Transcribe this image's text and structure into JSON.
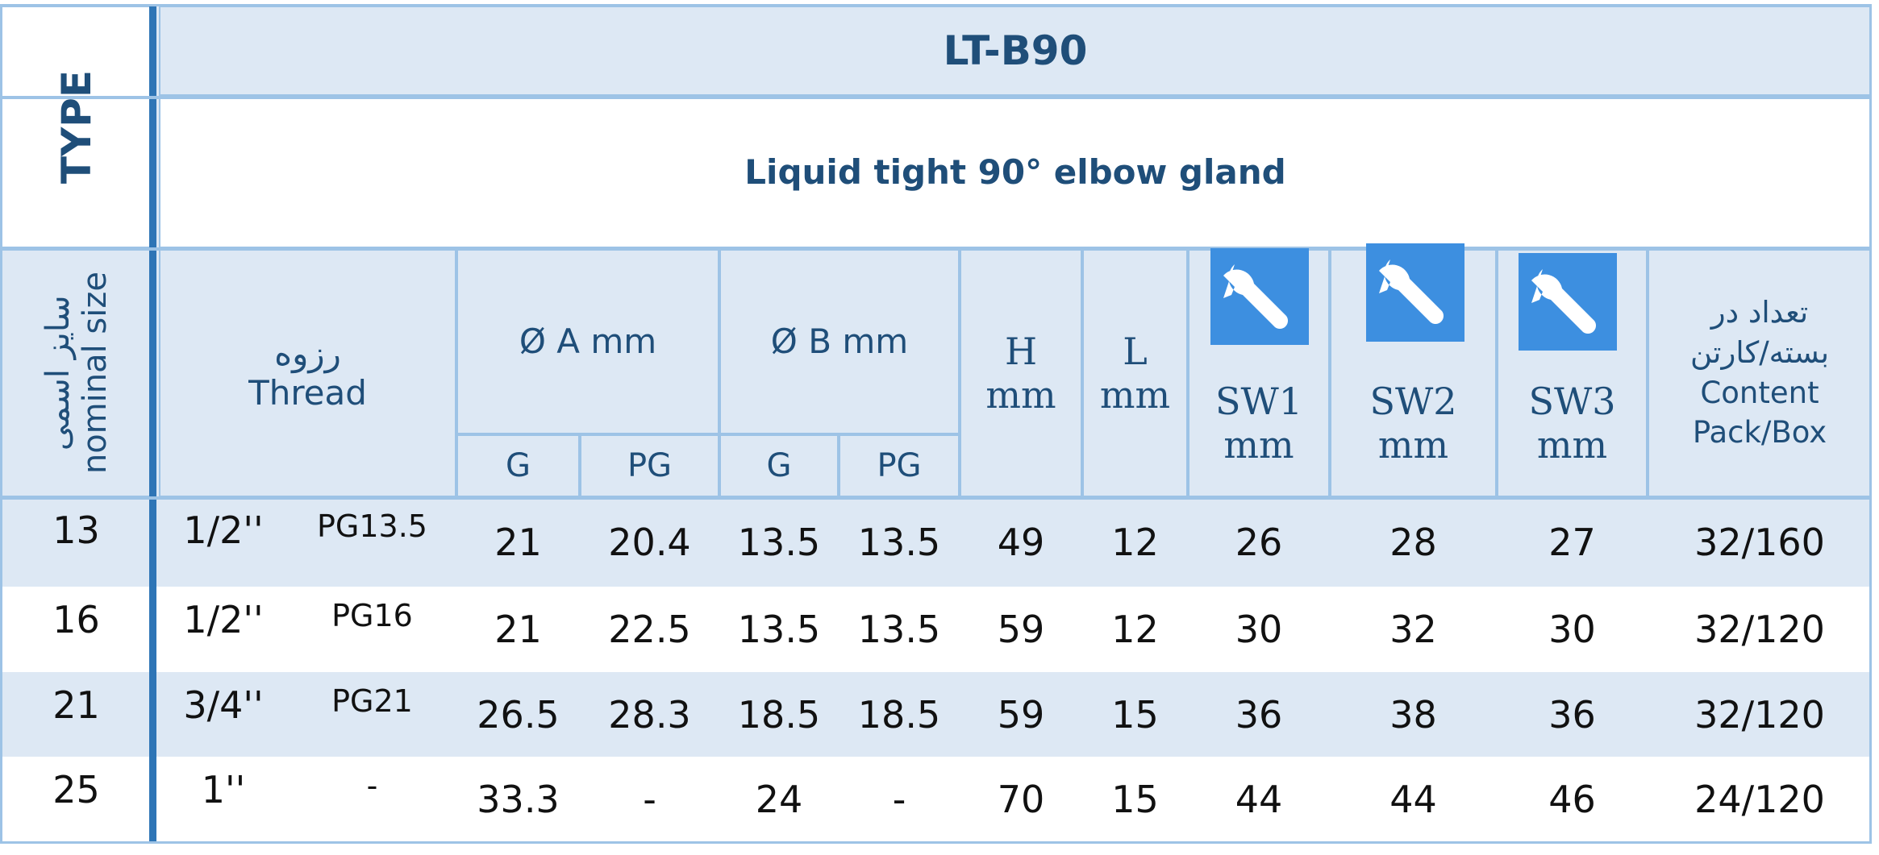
{
  "type_label": "TYPE",
  "title": "LT-B90",
  "subtitle": "Liquid tight 90° elbow gland",
  "headers": {
    "nominal_size": [
      "سایز اسمی",
      "nominal size"
    ],
    "thread": [
      "رزوه",
      "Thread"
    ],
    "dia_a": "Ø A mm",
    "dia_b": "Ø B mm",
    "g": "G",
    "pg": "PG",
    "h": [
      "H",
      "mm"
    ],
    "l": [
      "L",
      "mm"
    ],
    "sw1": [
      "SW1",
      "mm"
    ],
    "sw2": [
      "SW2",
      "mm"
    ],
    "sw3": [
      "SW3",
      "mm"
    ],
    "content": [
      "تعداد در",
      "بسته/کارتن",
      "Content",
      "Pack/Box"
    ]
  },
  "rows": [
    [
      "13",
      "1/2''",
      "PG13.5",
      "21",
      "20.4",
      "13.5",
      "13.5",
      "49",
      "12",
      "26",
      "28",
      "27",
      "32/160"
    ],
    [
      "16",
      "1/2''",
      "PG16",
      "21",
      "22.5",
      "13.5",
      "13.5",
      "59",
      "12",
      "30",
      "32",
      "30",
      "32/120"
    ],
    [
      "21",
      "3/4''",
      "PG21",
      "26.5",
      "28.3",
      "18.5",
      "18.5",
      "59",
      "15",
      "36",
      "38",
      "36",
      "32/120"
    ],
    [
      "25",
      "1''",
      "-",
      "33.3",
      "-",
      "24",
      "-",
      "70",
      "15",
      "44",
      "44",
      "46",
      "24/120"
    ]
  ]
}
